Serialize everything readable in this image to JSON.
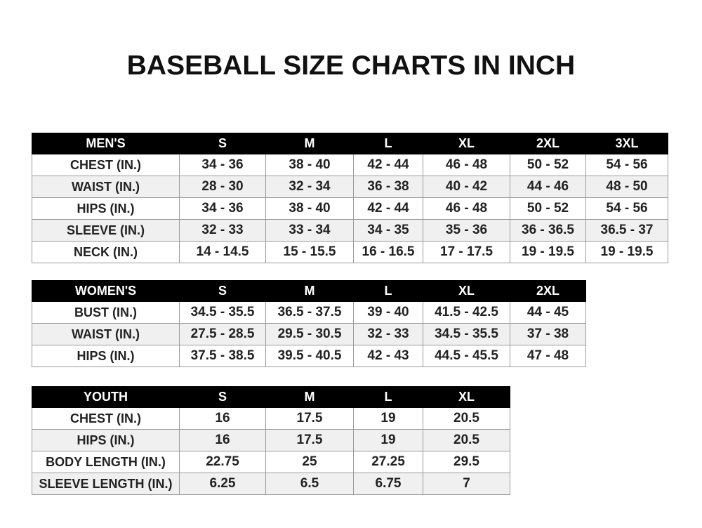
{
  "title": "BASEBALL SIZE CHARTS IN INCH",
  "tables": [
    {
      "name": "mens",
      "header": [
        "MEN'S",
        "S",
        "M",
        "L",
        "XL",
        "2XL",
        "3XL"
      ],
      "rows": [
        [
          "CHEST (IN.)",
          "34 - 36",
          "38 - 40",
          "42 - 44",
          "46 - 48",
          "50 - 52",
          "54 - 56"
        ],
        [
          "WAIST (IN.)",
          "28 - 30",
          "32 - 34",
          "36 - 38",
          "40 - 42",
          "44 - 46",
          "48 - 50"
        ],
        [
          "HIPS (IN.)",
          "34 - 36",
          "38 - 40",
          "42 - 44",
          "46 - 48",
          "50 - 52",
          "54 - 56"
        ],
        [
          "SLEEVE (IN.)",
          "32 - 33",
          "33 - 34",
          "34 - 35",
          "35 - 36",
          "36 - 36.5",
          "36.5 - 37"
        ],
        [
          "NECK (IN.)",
          "14 - 14.5",
          "15 - 15.5",
          "16 - 16.5",
          "17 - 17.5",
          "19 - 19.5",
          "19 - 19.5"
        ]
      ]
    },
    {
      "name": "womens",
      "header": [
        "WOMEN'S",
        "S",
        "M",
        "L",
        "XL",
        "2XL"
      ],
      "rows": [
        [
          "BUST (IN.)",
          "34.5 - 35.5",
          "36.5 - 37.5",
          "39 - 40",
          "41.5 - 42.5",
          "44 - 45"
        ],
        [
          "WAIST (IN.)",
          "27.5 - 28.5",
          "29.5 - 30.5",
          "32 - 33",
          "34.5 - 35.5",
          "37 - 38"
        ],
        [
          "HIPS (IN.)",
          "37.5 - 38.5",
          "39.5 - 40.5",
          "42 - 43",
          "44.5 - 45.5",
          "47 - 48"
        ]
      ]
    },
    {
      "name": "youth",
      "header": [
        "YOUTH",
        "S",
        "M",
        "L",
        "XL"
      ],
      "rows": [
        [
          "CHEST (IN.)",
          "16",
          "17.5",
          "19",
          "20.5"
        ],
        [
          "HIPS (IN.)",
          "16",
          "17.5",
          "19",
          "20.5"
        ],
        [
          "BODY LENGTH (IN.)",
          "22.75",
          "25",
          "27.25",
          "29.5"
        ],
        [
          "SLEEVE LENGTH (IN.)",
          "6.25",
          "6.5",
          "6.75",
          "7"
        ]
      ]
    }
  ]
}
